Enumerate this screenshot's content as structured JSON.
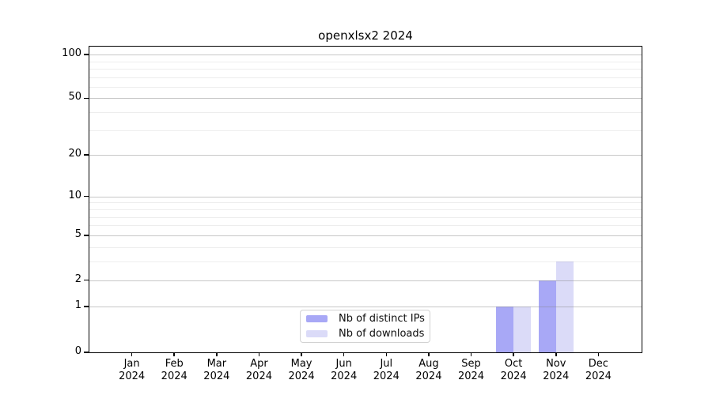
{
  "chart_data": {
    "type": "bar",
    "title": "openxlsx2 2024",
    "x_axis": {
      "months": [
        "Jan",
        "Feb",
        "Mar",
        "Apr",
        "May",
        "Jun",
        "Jul",
        "Aug",
        "Sep",
        "Oct",
        "Nov",
        "Dec"
      ],
      "year": "2024"
    },
    "y_axis": {
      "scale": "log1p",
      "major_ticks": [
        0,
        1,
        2,
        5,
        10,
        20,
        50,
        100
      ],
      "minor_gridlines": [
        3,
        4,
        6,
        7,
        8,
        9,
        30,
        40,
        60,
        70,
        80,
        90
      ],
      "range": [
        0,
        110
      ]
    },
    "series": [
      {
        "name": "Nb of distinct IPs",
        "color": "#a8a8f6",
        "values": [
          0,
          0,
          0,
          0,
          0,
          0,
          0,
          0,
          0,
          1,
          2,
          0
        ]
      },
      {
        "name": "Nb of downloads",
        "color": "#dbdbf8",
        "values": [
          0,
          0,
          0,
          0,
          0,
          0,
          0,
          0,
          0,
          1,
          3,
          0
        ]
      }
    ],
    "legend": {
      "position": "lower-center"
    },
    "colors": {
      "major_grid": "rgba(130,130,130,0.45)",
      "minor_grid": "rgba(0,0,0,0.07)",
      "spine": "#000000"
    },
    "grid": "on"
  }
}
